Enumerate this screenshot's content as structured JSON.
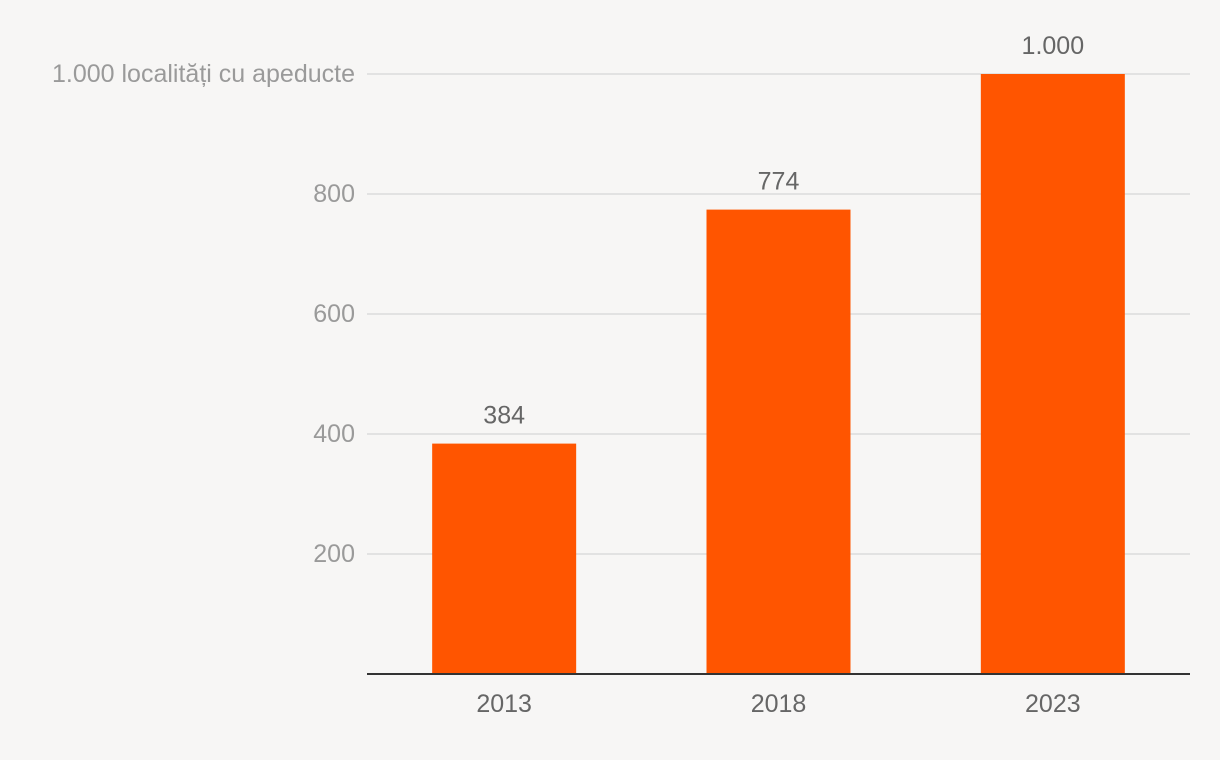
{
  "chart_data": {
    "type": "bar",
    "title": "",
    "xlabel": "",
    "ylabel": "",
    "categories": [
      "2013",
      "2018",
      "2023"
    ],
    "values": [
      384,
      774,
      1000
    ],
    "data_labels": [
      "384",
      "774",
      "1.000"
    ],
    "ylim": [
      0,
      1000
    ],
    "y_ticks": [
      200,
      400,
      600,
      800,
      1000
    ],
    "y_tick_labels": [
      "200",
      "400",
      "600",
      "800",
      "1.000 localități cu apeducte"
    ],
    "grid": true,
    "legend": "none",
    "bar_color": "#ff5500"
  }
}
